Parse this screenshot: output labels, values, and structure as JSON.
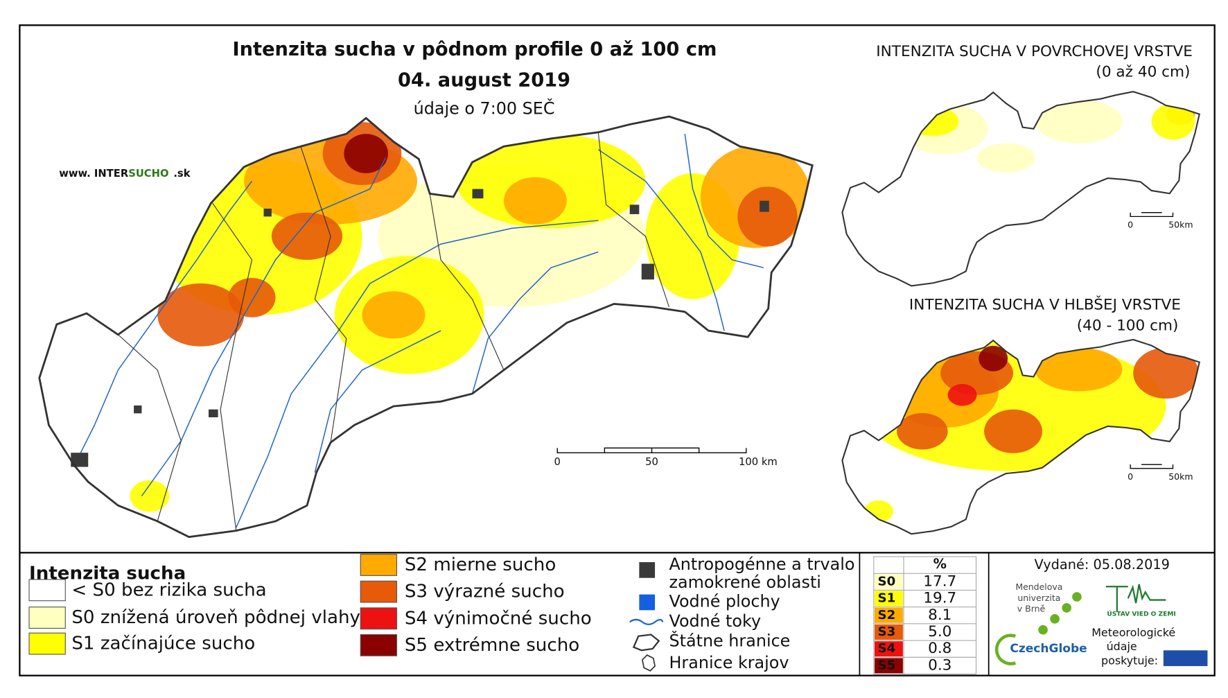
{
  "title": "Intenzita sucha v pôdnom profile 0 až 100 cm",
  "date": "04. august 2019",
  "subtitle": "údaje o 7:00 SEČ",
  "website": {
    "prefix": "www. INTER",
    "highlight": "SUCHO",
    "suffix": ".sk"
  },
  "main_scale": [
    "0",
    "50",
    "100 km"
  ],
  "inset_surface": {
    "title": "INTENZITA SUCHA V POVRCHOVEJ VRSTVE",
    "subtitle": "(0 až 40 cm)",
    "scale": [
      "0",
      "50km"
    ]
  },
  "inset_deep": {
    "title": "INTENZITA SUCHA V HLBŠEJ VRSTVE",
    "subtitle": "(40 - 100 cm)",
    "scale": [
      "0",
      "50km"
    ]
  },
  "legend": {
    "title": "Intenzita sucha",
    "items": [
      {
        "label": "< S0 bez rizika sucha",
        "color": "#ffffff"
      },
      {
        "label": "S0 znížená úroveň pôdnej vlahy",
        "color": "#ffffc0"
      },
      {
        "label": "S1 začínajúce sucho",
        "color": "#ffff00"
      },
      {
        "label": "S2 mierne sucho",
        "color": "#ffaa00"
      },
      {
        "label": "S3 výrazné sucho",
        "color": "#e65a0a"
      },
      {
        "label": "S4 výnimočné sucho",
        "color": "#ee1111"
      },
      {
        "label": "S5 extrémne sucho",
        "color": "#8b0000"
      }
    ]
  },
  "symbols": {
    "anthropogenic": [
      "Antropogénne a trvalo",
      "zamokrené oblasti"
    ],
    "water_bodies": "Vodné plochy",
    "rivers": "Vodné toky",
    "state_border": "Štátne hranice",
    "region_border": "Hranice krajov"
  },
  "stats": {
    "header": "%",
    "rows": [
      {
        "class": "S0",
        "value": "17.7"
      },
      {
        "class": "S1",
        "value": "19.7"
      },
      {
        "class": "S2",
        "value": "8.1"
      },
      {
        "class": "S3",
        "value": "5.0"
      },
      {
        "class": "S4",
        "value": "0.8"
      },
      {
        "class": "S5",
        "value": "0.3"
      }
    ]
  },
  "issued": "Vydané: 05.08.2019",
  "logos": {
    "mendel": [
      "Mendelova",
      "univerzita",
      "v Brně"
    ],
    "czechglobe": "CzechGlobe",
    "ustav": "ÚSTAV VIED O ZEMI",
    "shmu": [
      "Meteorologické",
      "údaje",
      "poskytuje:"
    ]
  }
}
